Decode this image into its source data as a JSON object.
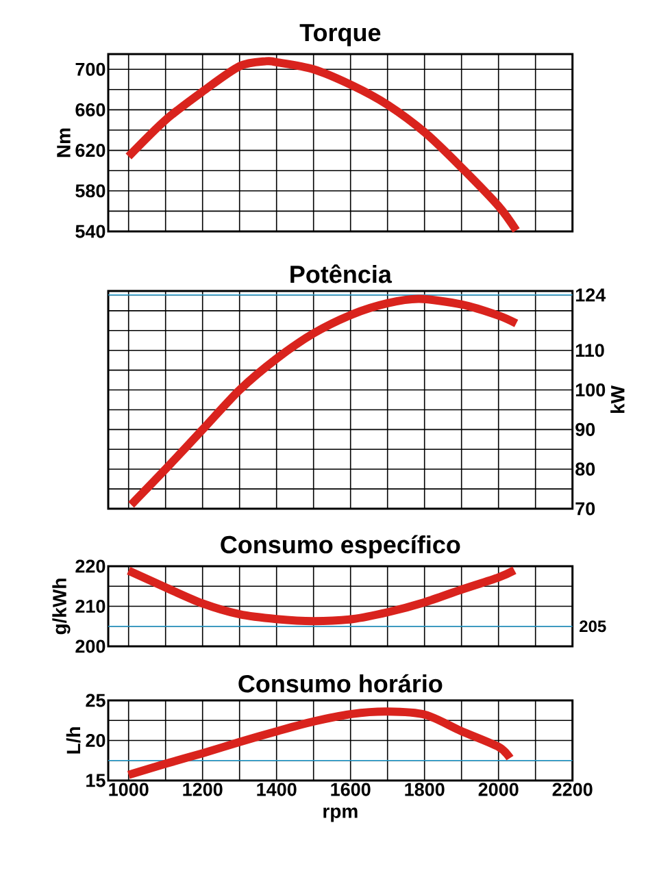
{
  "chart_data": [
    {
      "type": "line",
      "title": "Torque",
      "ylabel": "Nm",
      "x": [
        1000,
        1100,
        1200,
        1300,
        1372,
        1400,
        1500,
        1605,
        1700,
        1803,
        1900,
        2000,
        2048
      ],
      "series": [
        {
          "color": "#d9231d",
          "values": [
            614,
            650,
            678,
            703,
            708,
            707,
            700,
            684,
            665,
            637,
            603,
            565,
            541
          ]
        }
      ],
      "xlim": [
        945,
        2200
      ],
      "xticks": [
        1000,
        {
          "value": 1100,
          "label": null
        },
        1200,
        {
          "value": 1300,
          "label": null
        },
        1400,
        {
          "value": 1500,
          "label": null
        },
        1600,
        {
          "value": 1700,
          "label": null
        },
        1800,
        {
          "value": 1900,
          "label": null
        },
        2000,
        {
          "value": 2100,
          "label": null
        },
        2200
      ],
      "ylim": [
        540,
        715
      ],
      "yticks": [
        540,
        {
          "value": 560,
          "label": null
        },
        580,
        {
          "value": 600,
          "label": null
        },
        620,
        {
          "value": 640,
          "label": null
        },
        660,
        {
          "value": 680,
          "label": null
        },
        700
      ],
      "grid": true,
      "tick_labels": "y"
    },
    {
      "type": "line",
      "title": "Potência",
      "y2label": "kW",
      "x": [
        1007,
        1100,
        1200,
        1300,
        1400,
        1500,
        1605,
        1700,
        1786,
        1900,
        2000,
        2048
      ],
      "series": [
        {
          "color": "#d9231d",
          "axis": "y2",
          "values": [
            71,
            80,
            90,
            100,
            107.9,
            114.3,
            119.1,
            121.9,
            123,
            121.6,
            118.8,
            116.8
          ]
        }
      ],
      "xlim": [
        945,
        2200
      ],
      "xticks": [
        1000,
        {
          "value": 1100,
          "label": null
        },
        1200,
        {
          "value": 1300,
          "label": null
        },
        1400,
        {
          "value": 1500,
          "label": null
        },
        1600,
        {
          "value": 1700,
          "label": null
        },
        1800,
        {
          "value": 1900,
          "label": null
        },
        2000,
        {
          "value": 2100,
          "label": null
        },
        2200
      ],
      "y2lim": [
        70,
        125
      ],
      "y2ticks": [
        70,
        {
          "value": 75,
          "label": null
        },
        80,
        {
          "value": 85,
          "label": null
        },
        90,
        {
          "value": 95,
          "label": null
        },
        100,
        {
          "value": 105,
          "label": null
        },
        110,
        {
          "value": 115,
          "label": null
        },
        {
          "value": 120,
          "label": null
        },
        124
      ],
      "ref_lines": [
        {
          "axis": "y2",
          "value": 124,
          "color": "#29a3d6"
        }
      ],
      "grid": true,
      "tick_labels": "y"
    },
    {
      "type": "line",
      "title": "Consumo específico",
      "ylabel": "g/kWh",
      "x": [
        1000,
        1100,
        1200,
        1300,
        1400,
        1500,
        1605,
        1700,
        1800,
        1898,
        2000,
        2043
      ],
      "series": [
        {
          "color": "#d9231d",
          "values": [
            218.9,
            214.7,
            210.7,
            208,
            206.8,
            206.3,
            206.8,
            208.5,
            211,
            214.1,
            217.2,
            219
          ]
        }
      ],
      "xlim": [
        945,
        2200
      ],
      "xticks": [
        1000,
        {
          "value": 1100,
          "label": null
        },
        1200,
        {
          "value": 1300,
          "label": null
        },
        1400,
        {
          "value": 1500,
          "label": null
        },
        1600,
        {
          "value": 1700,
          "label": null
        },
        1800,
        {
          "value": 1900,
          "label": null
        },
        2000,
        {
          "value": 2100,
          "label": null
        },
        2200
      ],
      "ylim": [
        200,
        220
      ],
      "yticks": [
        200,
        {
          "value": 205,
          "label": null
        },
        210,
        {
          "value": 215,
          "label": null
        },
        220
      ],
      "ref_lines": [
        {
          "axis": "y",
          "value": 205,
          "label": "205",
          "color": "#29a3d6"
        }
      ],
      "grid": true,
      "tick_labels": "y"
    },
    {
      "type": "line",
      "title": "Consumo horário",
      "ylabel": "L/h",
      "xlabel": "rpm",
      "x": [
        1000,
        1100,
        1200,
        1300,
        1405,
        1503,
        1603,
        1700,
        1802,
        1898,
        2000,
        2031
      ],
      "series": [
        {
          "color": "#d9231d",
          "values": [
            15.7,
            17.1,
            18.4,
            19.8,
            21.2,
            22.4,
            23.3,
            23.6,
            23.2,
            21.2,
            19.2,
            17.8
          ]
        }
      ],
      "xlim": [
        945,
        2200
      ],
      "xticks": [
        1000,
        {
          "value": 1100,
          "label": null
        },
        1200,
        {
          "value": 1300,
          "label": null
        },
        1400,
        {
          "value": 1500,
          "label": null
        },
        1600,
        {
          "value": 1700,
          "label": null
        },
        1800,
        {
          "value": 1900,
          "label": null
        },
        2000,
        {
          "value": 2100,
          "label": null
        },
        2200
      ],
      "ylim": [
        15,
        25
      ],
      "yticks": [
        15,
        {
          "value": 17.5,
          "label": null
        },
        20,
        {
          "value": 22.5,
          "label": null
        },
        25
      ],
      "ref_lines": [
        {
          "axis": "y",
          "value": 17.5,
          "color": "#29a3d6"
        }
      ],
      "grid": true
    }
  ]
}
